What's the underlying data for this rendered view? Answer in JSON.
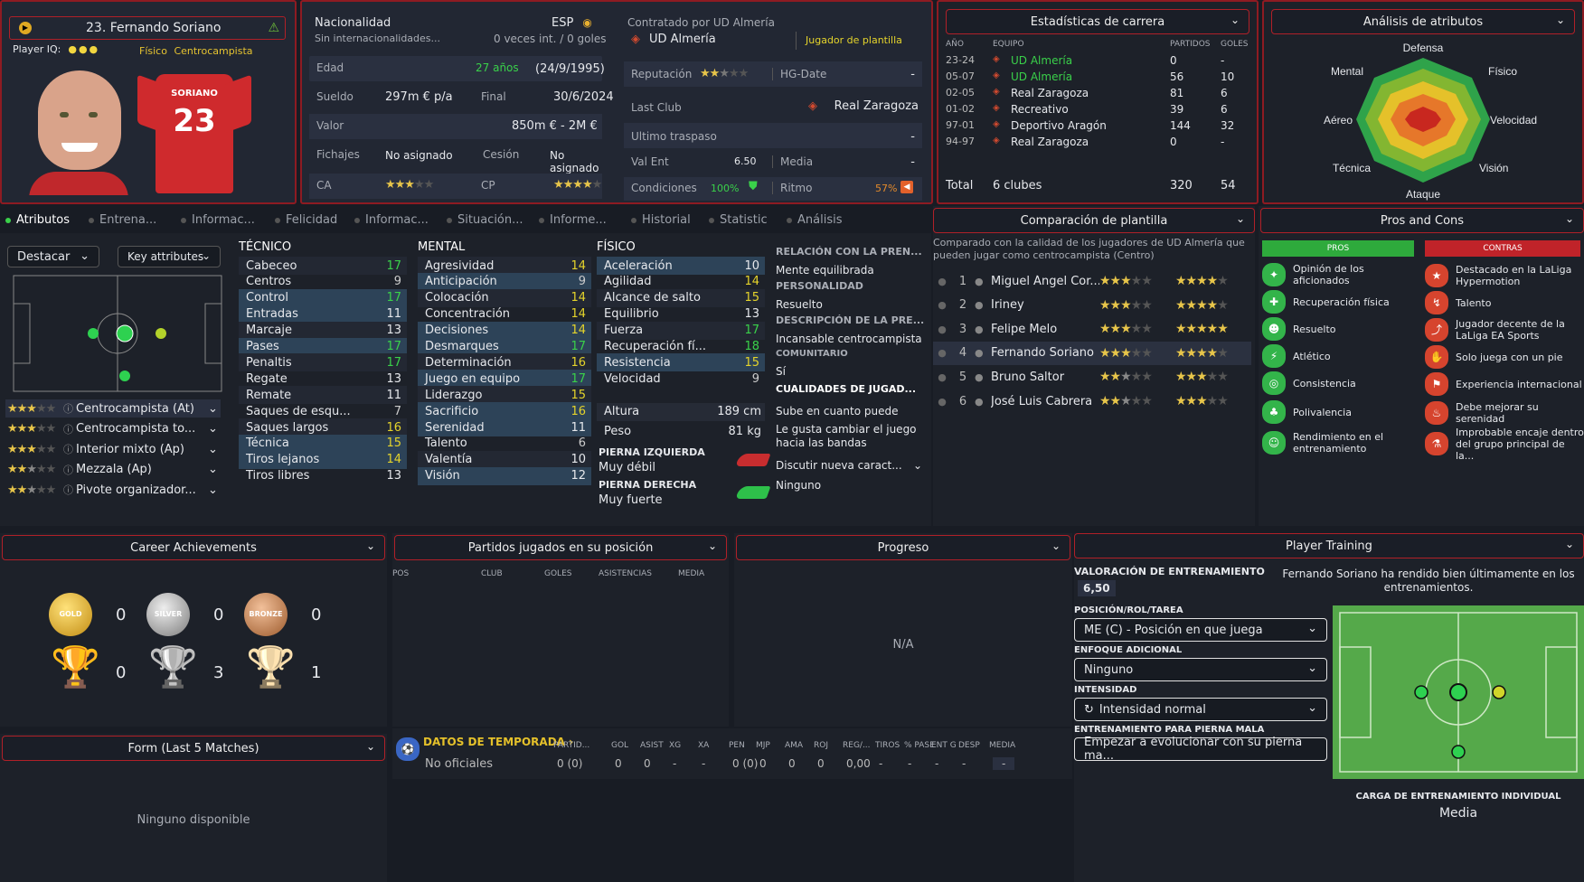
{
  "player": {
    "name": "23. Fernando Soriano",
    "iq_label": "Player IQ:",
    "profile": "Físico",
    "role": "Centrocampista",
    "shirt_name": "SORIANO",
    "shirt_number": "23"
  },
  "bio": {
    "nat_label": "Nacionalidad",
    "nat_value": "ESP",
    "nat_sub": "Sin internacionalidades...",
    "caps": "0 veces int. / 0 goles",
    "age_label": "Edad",
    "age": "27 años",
    "dob": "(24/9/1995)",
    "wage_label": "Sueldo",
    "wage": "297m € p/a",
    "end_label": "Final",
    "end": "30/6/2024",
    "value_label": "Valor",
    "value": "850m € - 2M €",
    "fichajes_label": "Fichajes",
    "fichajes": "No asignado",
    "cesion_label": "Cesión",
    "cesion": "No asignado",
    "ca_label": "CA",
    "cp_label": "CP"
  },
  "contract": {
    "label": "Contratado por UD Almería",
    "club": "UD Almería",
    "status": "Jugador de plantilla",
    "rep_label": "Reputación",
    "hg_label": "HG-Date",
    "hg_value": "-",
    "last_club_label": "Last Club",
    "last_club": "Real Zaragoza",
    "last_transfer_label": "Ultimo traspaso",
    "last_transfer": "-",
    "valent_label": "Val Ent",
    "valent": "6.50",
    "media_label": "Media",
    "media": "-",
    "cond_label": "Condiciones",
    "cond": "100%",
    "ritmo_label": "Ritmo",
    "ritmo": "57%"
  },
  "career": {
    "title": "Estadísticas de carrera",
    "cols": [
      "AÑO",
      "EQUIPO",
      "PARTIDOS",
      "GOLES"
    ],
    "rows": [
      [
        "23-24",
        "UD Almería",
        "0",
        "-"
      ],
      [
        "05-07",
        "UD Almería",
        "56",
        "10"
      ],
      [
        "02-05",
        "Real Zaragoza",
        "81",
        "6"
      ],
      [
        "01-02",
        "Recreativo",
        "39",
        "6"
      ],
      [
        "97-01",
        "Deportivo Aragón",
        "144",
        "32"
      ],
      [
        "94-97",
        "Real Zaragoza",
        "0",
        "-"
      ]
    ],
    "total_label": "Total",
    "total_clubs": "6 clubes",
    "total_apps": "320",
    "total_goals": "54"
  },
  "radar": {
    "title": "Análisis de atributos",
    "labels": [
      "Defensa",
      "Físico",
      "Velocidad",
      "Visión",
      "Ataque",
      "Técnica",
      "Aéreo",
      "Mental"
    ]
  },
  "tabs": [
    "Atributos",
    "Entrena...",
    "Informac...",
    "Felicidad",
    "Informac...",
    "Situación...",
    "Informe...",
    "Historial",
    "Statistic",
    "Análisis"
  ],
  "left": {
    "highlight": "Destacar",
    "key": "Key attributes",
    "roles": [
      {
        "name": "Centrocampista (At)"
      },
      {
        "name": "Centrocampista to..."
      },
      {
        "name": "Interior mixto (Ap)"
      },
      {
        "name": "Mezzala (Ap)"
      },
      {
        "name": "Pivote organizador..."
      }
    ]
  },
  "attrs": {
    "tech_title": "TÉCNICO",
    "tech": [
      [
        "Cabeceo",
        "17"
      ],
      [
        "Centros",
        "9"
      ],
      [
        "Control",
        "17"
      ],
      [
        "Entradas",
        "11"
      ],
      [
        "Marcaje",
        "13"
      ],
      [
        "Pases",
        "17"
      ],
      [
        "Penaltis",
        "17"
      ],
      [
        "Regate",
        "13"
      ],
      [
        "Remate",
        "11"
      ],
      [
        "Saques de esqu...",
        "7"
      ],
      [
        "Saques largos",
        "16"
      ],
      [
        "Técnica",
        "15"
      ],
      [
        "Tiros lejanos",
        "14"
      ],
      [
        "Tiros libres",
        "13"
      ]
    ],
    "mental_title": "MENTAL",
    "mental": [
      [
        "Agresividad",
        "14"
      ],
      [
        "Anticipación",
        "9"
      ],
      [
        "Colocación",
        "14"
      ],
      [
        "Concentración",
        "14"
      ],
      [
        "Decisiones",
        "14"
      ],
      [
        "Desmarques",
        "17"
      ],
      [
        "Determinación",
        "16"
      ],
      [
        "Juego en equipo",
        "17"
      ],
      [
        "Liderazgo",
        "15"
      ],
      [
        "Sacrificio",
        "16"
      ],
      [
        "Serenidad",
        "11"
      ],
      [
        "Talento",
        "6"
      ],
      [
        "Valentía",
        "10"
      ],
      [
        "Visión",
        "12"
      ]
    ],
    "phys_title": "FÍSICO",
    "phys": [
      [
        "Aceleración",
        "10"
      ],
      [
        "Agilidad",
        "14"
      ],
      [
        "Alcance de salto",
        "15"
      ],
      [
        "Equilibrio",
        "13"
      ],
      [
        "Fuerza",
        "17"
      ],
      [
        "Recuperación fí...",
        "18"
      ],
      [
        "Resistencia",
        "15"
      ],
      [
        "Velocidad",
        "9"
      ]
    ],
    "height_label": "Altura",
    "height": "189 cm",
    "weight_label": "Peso",
    "weight": "81 kg",
    "left_foot_label": "PIERNA IZQUIERDA",
    "left_foot": "Muy débil",
    "right_foot_label": "PIERNA DERECHA",
    "right_foot": "Muy fuerte"
  },
  "personal": {
    "rel_title": "RELACIÓN CON LA PREN...",
    "rel": "Mente equilibrada",
    "pers_title": "PERSONALIDAD",
    "pers": "Resuelto",
    "desc_title": "DESCRIPCIÓN DE LA PRE...",
    "desc": "Incansable centrocampista",
    "comm_title": "COMUNITARIO",
    "comm": "Sí",
    "qual_title": "CUALIDADES DE JUGAD...",
    "q1": "Sube en cuanto puede",
    "q2": "Le gusta cambiar el juego hacia las bandas",
    "discuss": "Discutir nueva caract...",
    "discuss_val": "Ninguno"
  },
  "compare": {
    "title": "Comparación de plantilla",
    "desc": "Comparado con la calidad de los jugadores de UD Almería que pueden jugar como centrocampista (Centro)",
    "rows": [
      [
        "1",
        "Miguel Ángel Cor..."
      ],
      [
        "2",
        "Iriney"
      ],
      [
        "3",
        "Felipe Melo"
      ],
      [
        "4",
        "Fernando Soriano"
      ],
      [
        "5",
        "Bruno Saltor"
      ],
      [
        "6",
        "José Luis Cabrera"
      ]
    ]
  },
  "proscons": {
    "title": "Pros and Cons",
    "pros_label": "PROS",
    "cons_label": "CONTRAS",
    "pros": [
      "Opinión de los aficionados",
      "Recuperación física",
      "Resuelto",
      "Atlético",
      "Consistencia",
      "Polivalencia",
      "Rendimiento en el entrenamiento"
    ],
    "cons": [
      "Destacado en la LaLiga Hypermotion",
      "Talento",
      "Jugador decente de la LaLiga EA Sports",
      "Solo juega con un pie",
      "Experiencia internacional",
      "Debe mejorar su serenidad",
      "Improbable encaje dentro del grupo principal de la..."
    ]
  },
  "achievements": {
    "title": "Career Achievements",
    "gold": "GOLD",
    "silver": "SILVER",
    "bronze": "BRONZE",
    "medal_counts": [
      "0",
      "0",
      "0"
    ],
    "trophy_counts": [
      "0",
      "3",
      "1"
    ]
  },
  "form": {
    "title": "Form (Last 5 Matches)",
    "empty": "Ninguno disponible"
  },
  "position_games": {
    "title": "Partidos jugados en su posición",
    "cols": [
      "POS",
      "CLUB",
      "GOLES",
      "ASISTENCIAS",
      "MEDIA"
    ]
  },
  "progress": {
    "title": "Progreso",
    "na": "N/A"
  },
  "season": {
    "title": "DATOS DE TEMPORADA",
    "cols": [
      "PARTID...",
      "GOL",
      "ASIST",
      "XG",
      "XA",
      "PEN",
      "MJP",
      "AMA",
      "ROJ",
      "REG/...",
      "TIROS",
      "% PASE",
      "ENT G",
      "DESP",
      "MEDIA"
    ],
    "row_label": "No oficiales",
    "row": [
      "0 (0)",
      "0",
      "0",
      "-",
      "-",
      "0 (0)",
      "0",
      "0",
      "0",
      "0,00",
      "-",
      "-",
      "-",
      "-",
      "-"
    ]
  },
  "training": {
    "title": "Player Training",
    "val_label": "VALORACIÓN DE ENTRENAMIENTO",
    "val": "6,50",
    "note": "Fernando Soriano ha rendido bien últimamente en los entrenamientos.",
    "pos_label": "POSICIÓN/ROL/TAREA",
    "pos": "ME (C) - Posición en que juega",
    "focus_label": "ENFOQUE ADICIONAL",
    "focus": "Ninguno",
    "int_label": "INTENSIDAD",
    "int": "Intensidad normal",
    "foot_label": "ENTRENAMIENTO PARA PIERNA MALA",
    "foot": "Empezar a evolucionar con su pierna ma...",
    "load_label": "CARGA DE ENTRENAMIENTO INDIVIDUAL",
    "load": "Media"
  }
}
